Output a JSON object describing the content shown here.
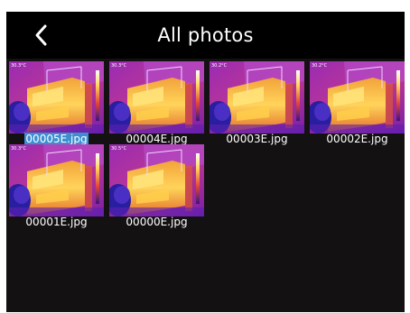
{
  "header": {
    "title": "All photos",
    "back_icon": "chevron-left-icon"
  },
  "photos": [
    {
      "name": "00005E.jpg",
      "temp": "30.3°C",
      "selected": true
    },
    {
      "name": "00004E.jpg",
      "temp": "30.3°C",
      "selected": false
    },
    {
      "name": "00003E.jpg",
      "temp": "30.2°C",
      "selected": false
    },
    {
      "name": "00002E.jpg",
      "temp": "30.2°C",
      "selected": false
    },
    {
      "name": "00001E.jpg",
      "temp": "30.3°C",
      "selected": false
    },
    {
      "name": "00000E.jpg",
      "temp": "30.5°C",
      "selected": false
    }
  ],
  "colors": {
    "background": "#141113",
    "header": "#000000",
    "selection": "#3d8fd0"
  }
}
